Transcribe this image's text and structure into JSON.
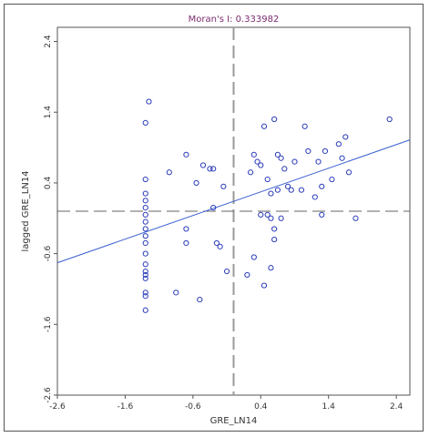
{
  "chart_data": {
    "type": "scatter",
    "title": "Moran's I: 0.333982",
    "xlabel": "GRE_LN14",
    "ylabel": "lagged GRE_LN14",
    "xlim": [
      -2.6,
      2.6
    ],
    "ylim": [
      -2.6,
      2.6
    ],
    "xticks": [
      "-2.6",
      "-1.6",
      "-0.6",
      "0.4",
      "1.4",
      "2.4"
    ],
    "yticks": [
      "2.4",
      "1.4",
      "0.4",
      "-0.6",
      "-1.6",
      "-2.6"
    ],
    "reference_lines": {
      "x": 0,
      "y": 0
    },
    "regression": {
      "slope": 0.334,
      "intercept": 0.14
    },
    "grid": false,
    "colors": {
      "points": "#2b3db8",
      "fit_line": "#3a5fd0",
      "reference": "#999999",
      "axes": "#555555",
      "title": "#7a2b6e"
    },
    "points": [
      [
        -1.25,
        1.55
      ],
      [
        -1.3,
        1.25
      ],
      [
        -1.3,
        0.45
      ],
      [
        -1.3,
        0.25
      ],
      [
        -1.3,
        0.15
      ],
      [
        -1.3,
        0.05
      ],
      [
        -1.3,
        -0.05
      ],
      [
        -1.3,
        -0.15
      ],
      [
        -1.3,
        -0.25
      ],
      [
        -1.3,
        -0.35
      ],
      [
        -1.3,
        -0.45
      ],
      [
        -1.3,
        -0.6
      ],
      [
        -1.3,
        -0.75
      ],
      [
        -1.3,
        -0.85
      ],
      [
        -1.3,
        -0.9
      ],
      [
        -1.3,
        -0.95
      ],
      [
        -1.3,
        -1.15
      ],
      [
        -1.3,
        -1.2
      ],
      [
        -1.3,
        -1.4
      ],
      [
        -0.95,
        0.55
      ],
      [
        -0.7,
        0.8
      ],
      [
        -0.55,
        0.4
      ],
      [
        -0.45,
        0.65
      ],
      [
        -0.35,
        0.6
      ],
      [
        -0.3,
        0.6
      ],
      [
        -0.15,
        0.35
      ],
      [
        -0.7,
        -0.25
      ],
      [
        -0.7,
        -0.45
      ],
      [
        -0.3,
        0.05
      ],
      [
        -0.25,
        -0.45
      ],
      [
        -0.2,
        -0.5
      ],
      [
        -0.1,
        -0.85
      ],
      [
        -0.5,
        -1.25
      ],
      [
        -0.85,
        -1.15
      ],
      [
        0.2,
        -0.9
      ],
      [
        0.3,
        -0.65
      ],
      [
        0.25,
        0.55
      ],
      [
        0.3,
        0.8
      ],
      [
        0.35,
        0.7
      ],
      [
        0.4,
        0.65
      ],
      [
        0.45,
        1.2
      ],
      [
        0.5,
        -0.05
      ],
      [
        0.55,
        -0.1
      ],
      [
        0.6,
        -0.25
      ],
      [
        0.55,
        0.25
      ],
      [
        0.5,
        0.45
      ],
      [
        0.6,
        1.3
      ],
      [
        0.65,
        0.8
      ],
      [
        0.65,
        0.3
      ],
      [
        0.7,
        0.75
      ],
      [
        0.75,
        0.6
      ],
      [
        0.8,
        0.35
      ],
      [
        0.85,
        0.3
      ],
      [
        0.9,
        0.7
      ],
      [
        0.7,
        -0.1
      ],
      [
        0.6,
        -0.4
      ],
      [
        1.0,
        0.3
      ],
      [
        1.05,
        1.2
      ],
      [
        1.1,
        0.85
      ],
      [
        1.2,
        0.2
      ],
      [
        1.25,
        0.7
      ],
      [
        1.3,
        0.35
      ],
      [
        1.45,
        0.45
      ],
      [
        1.55,
        0.95
      ],
      [
        1.6,
        0.75
      ],
      [
        1.7,
        0.55
      ],
      [
        1.65,
        1.05
      ],
      [
        1.3,
        -0.05
      ],
      [
        1.8,
        -0.1
      ],
      [
        2.3,
        1.3
      ],
      [
        0.45,
        -1.05
      ],
      [
        0.55,
        -0.8
      ],
      [
        0.4,
        -0.05
      ],
      [
        1.35,
        0.85
      ]
    ]
  }
}
